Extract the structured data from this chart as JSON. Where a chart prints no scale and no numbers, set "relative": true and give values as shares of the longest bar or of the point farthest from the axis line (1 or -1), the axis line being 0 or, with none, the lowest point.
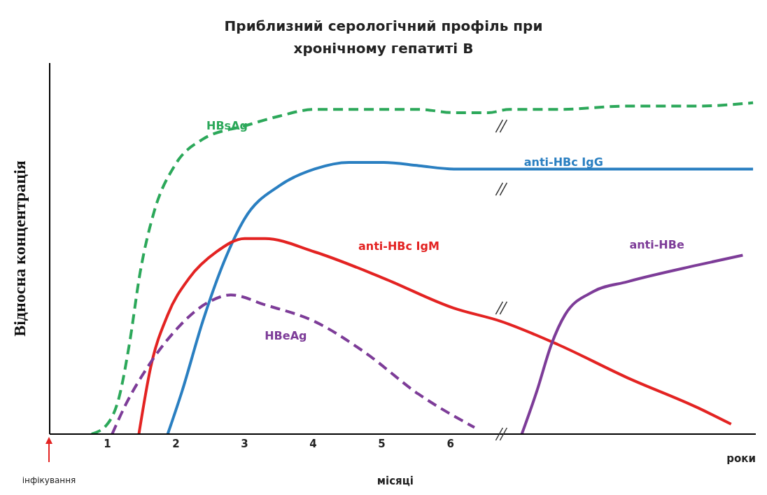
{
  "chart_data": {
    "type": "line",
    "title": "Приблизний серологічний профіль при\nхронічному гепатиті В",
    "xlabel": "місяці",
    "ylabel": "Відносна концентрація",
    "annotations": [
      "роки",
      "інфікування"
    ],
    "relative": true,
    "xlim": [
      0.16,
      10.45
    ],
    "xticks": [
      1,
      2,
      3,
      4,
      5,
      6
    ],
    "tick_labels": "x",
    "marker": "none",
    "series": [
      {
        "name": "HBsAg",
        "color": "#2ca85a",
        "line_style": "dashed",
        "x": [
          0.77,
          1.0,
          1.17,
          1.32,
          1.48,
          1.68,
          1.98,
          2.39,
          3.0,
          3.51,
          4.02,
          4.52,
          5.03,
          5.54,
          6.05,
          6.55,
          6.86,
          7.57,
          8.58,
          9.6,
          10.41
        ],
        "values": [
          0,
          0.03,
          0.11,
          0.27,
          0.49,
          0.67,
          0.81,
          0.89,
          0.93,
          0.96,
          0.98,
          0.98,
          0.98,
          0.98,
          0.97,
          0.97,
          0.98,
          0.98,
          0.99,
          0.99,
          1
        ]
      },
      {
        "name": "anti-HBc  IgG",
        "color": "#2a7fc1",
        "line_style": "solid",
        "x": [
          1.88,
          2.09,
          2.39,
          2.7,
          3.0,
          3.51,
          4.02,
          4.52,
          5.03,
          5.54,
          6.05,
          6.55,
          7.57,
          10.41
        ],
        "values": [
          0,
          0.13,
          0.34,
          0.52,
          0.65,
          0.75,
          0.8,
          0.82,
          0.82,
          0.81,
          0.8,
          0.8,
          0.8,
          0.8
        ]
      },
      {
        "name": "anti-HBc IgM",
        "color": "#e32322",
        "line_style": "solid",
        "x": [
          1.46,
          1.63,
          1.88,
          2.19,
          2.59,
          3.0,
          3.3,
          4.02,
          5.03,
          6.05,
          6.74,
          7.57,
          8.58,
          9.6,
          10.09
        ],
        "values": [
          0,
          0.2,
          0.36,
          0.47,
          0.55,
          0.59,
          0.59,
          0.55,
          0.47,
          0.38,
          0.34,
          0.27,
          0.17,
          0.08,
          0.03
        ]
      },
      {
        "name": "HBeAg",
        "color": "#7d3c98",
        "line_style": "dashed",
        "x": [
          1.07,
          1.27,
          1.58,
          1.98,
          2.49,
          2.8,
          3.3,
          4.02,
          4.73,
          5.54,
          6.35
        ],
        "values": [
          0,
          0.09,
          0.2,
          0.31,
          0.4,
          0.42,
          0.39,
          0.34,
          0.25,
          0.12,
          0.02
        ]
      },
      {
        "name": "anti-HBe",
        "color": "#7d3c98",
        "line_style": "solid",
        "x": [
          7.04,
          7.26,
          7.47,
          7.67,
          8.08,
          8.58,
          9.6,
          10.26
        ],
        "values": [
          0,
          0.13,
          0.27,
          0.36,
          0.43,
          0.46,
          0.51,
          0.54
        ]
      }
    ]
  }
}
